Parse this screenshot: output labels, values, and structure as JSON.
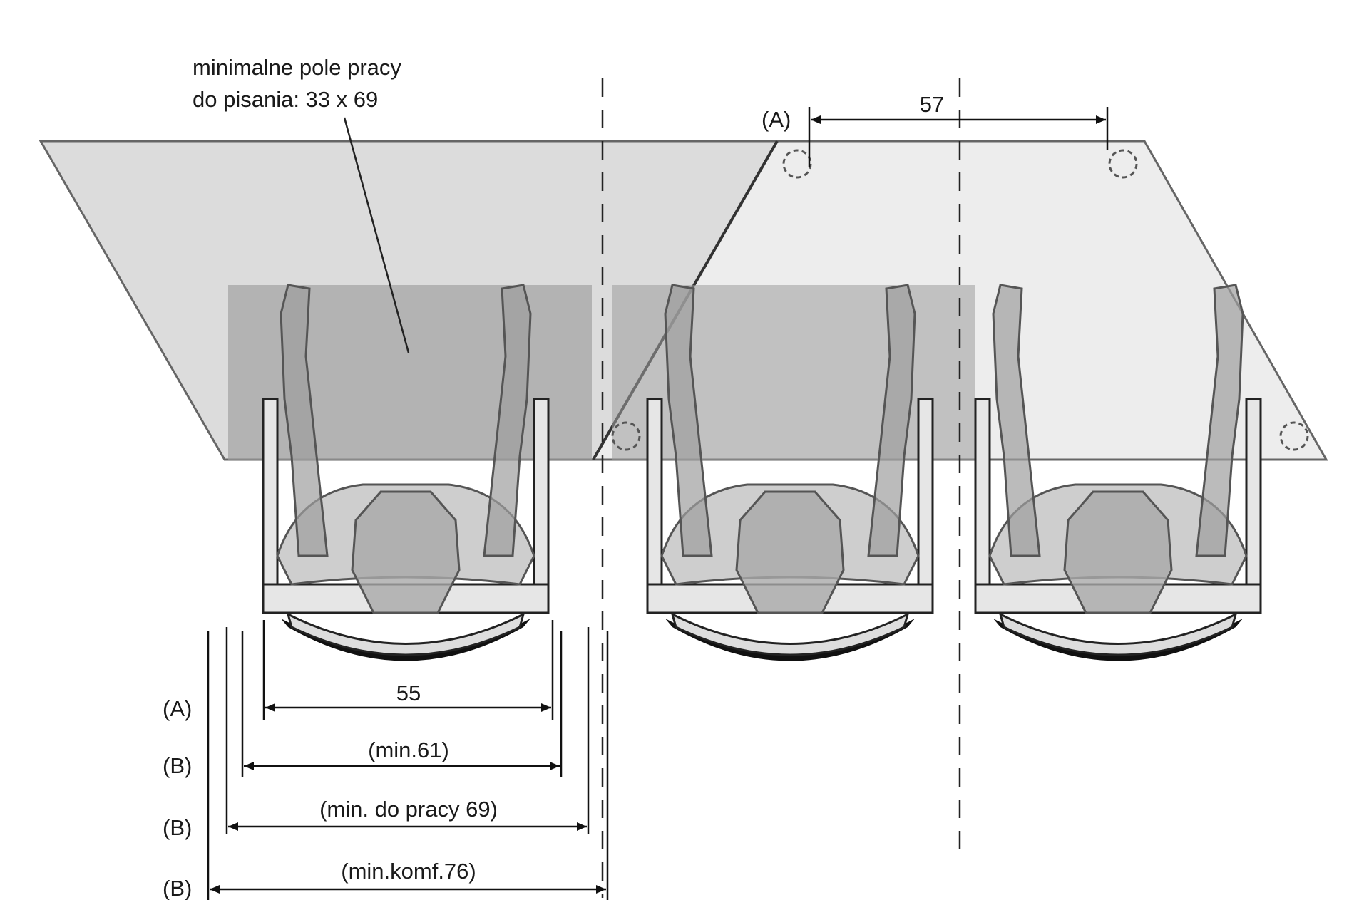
{
  "diagram": {
    "callout_line1": "minimalne pole pracy",
    "callout_line2": "do pisania: 33 x 69",
    "top_dimension": {
      "label": "(A)",
      "value": "57"
    },
    "dimensions": [
      {
        "row": "(A)",
        "value": "55"
      },
      {
        "row": "(B)",
        "value": "(min.61)"
      },
      {
        "row": "(B)",
        "value": "(min. do pracy 69)"
      },
      {
        "row": "(B)",
        "value": "(min.komf.76)"
      }
    ],
    "colors": {
      "table_fill": "#c8c8c8",
      "work_area_fill": "#a8a8a8",
      "outline": "#555555",
      "line": "#1a1a1a"
    }
  }
}
